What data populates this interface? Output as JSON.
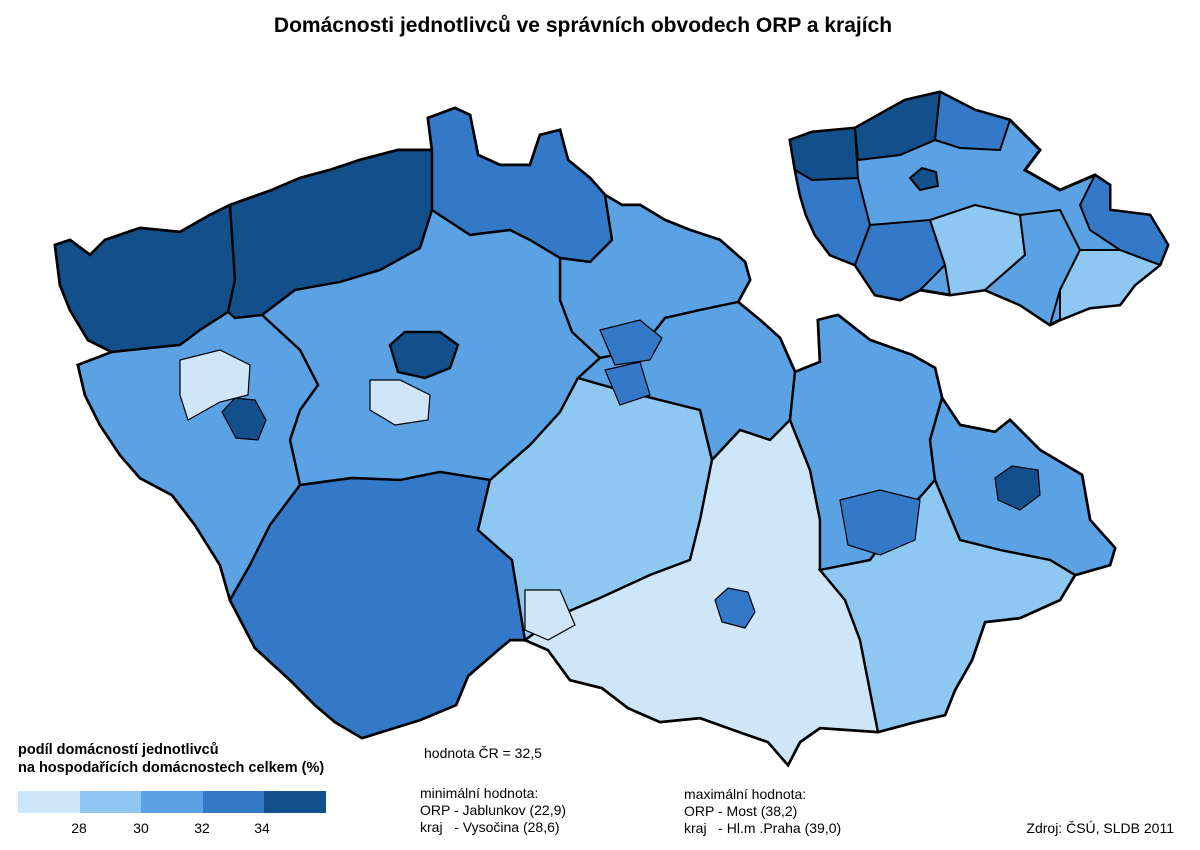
{
  "title": "Domácnosti jednotlivců ve správních obvodech ORP a krajích",
  "legend": {
    "title_line1": "podíl domácností jednotlivců",
    "title_line2": "na hospodařících domácnostech celkem (%)",
    "colors": [
      "#cfe6f9",
      "#8ec7f1",
      "#5aa2e3",
      "#3479c8",
      "#124f8b"
    ],
    "ticks": [
      "28",
      "30",
      "32",
      "34"
    ]
  },
  "stats": {
    "cr_value": "hodnota ČR = 32,5",
    "min_header": "minimální hodnota:",
    "min_orp": "ORP - Jablunkov (22,9)",
    "min_kraj": "kraj   - Vysočina (28,6)",
    "max_header": "maximální hodnota:",
    "max_orp": "ORP - Most (38,2)",
    "max_kraj": "kraj   - Hl.m .Praha (39,0)"
  },
  "source": "Zdroj: ČSÚ, SLDB 2011"
}
